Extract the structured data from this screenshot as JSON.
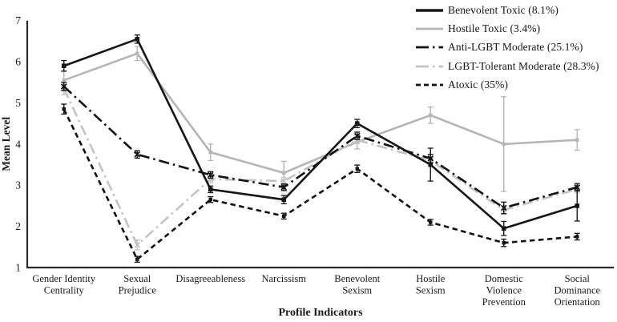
{
  "chart_data": {
    "type": "line",
    "title": "",
    "xlabel": "Profile Indicators",
    "ylabel": "Mean Level",
    "ylim": [
      1,
      7
    ],
    "y_ticks": [
      1,
      2,
      3,
      4,
      5,
      6,
      7
    ],
    "grid": false,
    "legend_position": "top-right",
    "error_bars": true,
    "axis_color": "#2a2a2a",
    "text_color": "#1a1a1a",
    "categories": [
      "Gender Identity Centrality",
      "Sexual Prejudice",
      "Disagreeableness",
      "Narcissism",
      "Benevolent Sexism",
      "Hostile Sexism",
      "Domestic Violence Prevention",
      "Social Dominance Orientation"
    ],
    "category_label_lines": [
      [
        "Gender Identity",
        "Centrality"
      ],
      [
        "Sexual",
        "Prejudice"
      ],
      [
        "Disagreeableness"
      ],
      [
        "Narcissism"
      ],
      [
        "Benevolent",
        "Sexism"
      ],
      [
        "Hostile",
        "Sexism"
      ],
      [
        "Domestic",
        "Violence",
        "Prevention"
      ],
      [
        "Social",
        "Dominance",
        "Orientation"
      ]
    ],
    "series": [
      {
        "name": "Benevolent Toxic (8.1%)",
        "values": [
          5.9,
          6.55,
          2.9,
          2.65,
          4.5,
          3.5,
          1.95,
          2.5
        ],
        "errors": [
          0.13,
          0.1,
          0.08,
          0.1,
          0.1,
          0.4,
          0.17,
          0.37
        ],
        "color": "#161616",
        "style": "solid",
        "marker": "square"
      },
      {
        "name": "Hostile Toxic (3.4%)",
        "values": [
          5.55,
          6.2,
          3.8,
          3.3,
          4.05,
          4.7,
          4.0,
          4.1
        ],
        "errors": [
          0.23,
          0.17,
          0.2,
          0.28,
          0.17,
          0.2,
          1.15,
          0.25
        ],
        "color": "#b5b5b5",
        "style": "solid",
        "marker": "square-small"
      },
      {
        "name": "Anti-LGBT Moderate (25.1%)",
        "values": [
          5.4,
          3.75,
          3.25,
          2.95,
          4.2,
          3.65,
          2.45,
          2.95
        ],
        "errors": [
          0.1,
          0.09,
          0.08,
          0.08,
          0.09,
          0.1,
          0.14,
          0.09
        ],
        "color": "#111111",
        "style": "dashdot",
        "marker": "x"
      },
      {
        "name": "LGBT-Tolerant Moderate (28.3%)",
        "values": [
          5.35,
          1.55,
          3.15,
          3.1,
          4.1,
          3.6,
          2.4,
          2.9
        ],
        "errors": [
          0.15,
          0.12,
          0.09,
          0.09,
          0.09,
          0.09,
          0.11,
          0.09
        ],
        "color": "#c3c3c3",
        "style": "dashdot",
        "marker": "x"
      },
      {
        "name": "Atoxic (35%)",
        "values": [
          4.85,
          1.2,
          2.65,
          2.25,
          3.4,
          2.1,
          1.6,
          1.75
        ],
        "errors": [
          0.12,
          0.07,
          0.07,
          0.07,
          0.09,
          0.07,
          0.09,
          0.08
        ],
        "color": "#111111",
        "style": "dashed",
        "marker": "square-small"
      }
    ]
  }
}
